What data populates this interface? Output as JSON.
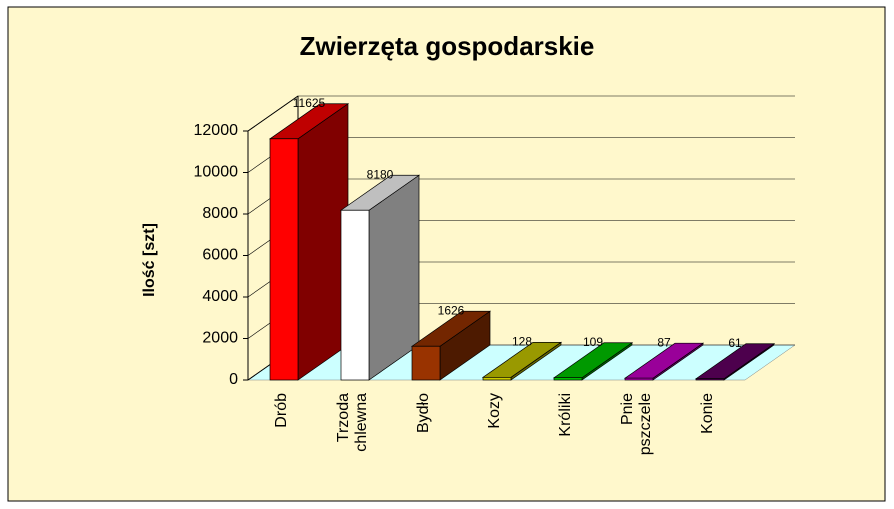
{
  "chart_data": {
    "type": "bar3d",
    "title": "Zwierzęta gospodarskie",
    "ylabel": "Ilość [szt]",
    "categories": [
      "Drób",
      "Trzoda chlewna",
      "Bydło",
      "Kozy",
      "Króliki",
      "Pnie pszczele",
      "Konie"
    ],
    "values": [
      11625,
      8180,
      1626,
      128,
      109,
      87,
      61
    ],
    "colors": [
      "#ff0000",
      "#ffffff",
      "#993300",
      "#cccc00",
      "#00cc00",
      "#cc00cc",
      "#660066"
    ],
    "ylim": [
      0,
      12000
    ],
    "yticks": [
      0,
      2000,
      4000,
      6000,
      8000,
      10000,
      12000
    ],
    "grid": true
  }
}
